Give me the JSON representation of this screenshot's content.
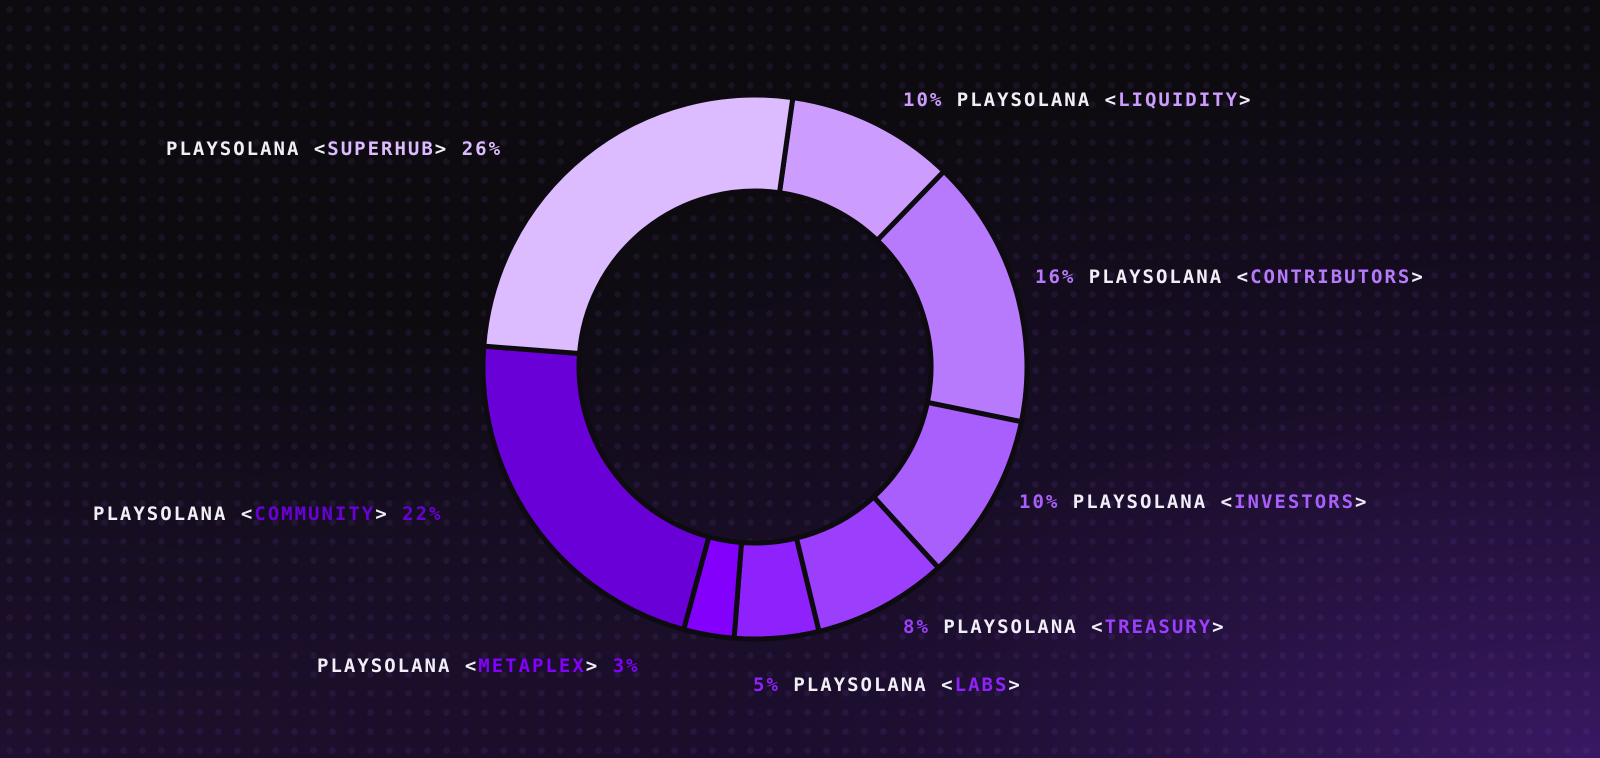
{
  "chart_data": {
    "type": "pie",
    "donut": true,
    "slices": [
      {
        "prefix": "PLAYSOLANA",
        "label": "LIQUIDITY",
        "value": 10,
        "pct_text": "10%",
        "color": "#cc9dfd"
      },
      {
        "prefix": "PLAYSOLANA",
        "label": "CONTRIBUTORS",
        "value": 16,
        "pct_text": "16%",
        "color": "#b87afc"
      },
      {
        "prefix": "PLAYSOLANA",
        "label": "INVESTORS",
        "value": 10,
        "pct_text": "10%",
        "color": "#a95ffc"
      },
      {
        "prefix": "PLAYSOLANA",
        "label": "TREASURY",
        "value": 8,
        "pct_text": "8%",
        "color": "#9b3ffd"
      },
      {
        "prefix": "PLAYSOLANA",
        "label": "LABS",
        "value": 5,
        "pct_text": "5%",
        "color": "#8f22fc"
      },
      {
        "prefix": "PLAYSOLANA",
        "label": "METAPLEX",
        "value": 3,
        "pct_text": "3%",
        "color": "#8200fc"
      },
      {
        "prefix": "PLAYSOLANA",
        "label": "COMMUNITY",
        "value": 22,
        "pct_text": "22%",
        "color": "#6a00d8"
      },
      {
        "prefix": "PLAYSOLANA",
        "label": "SUPERHUB",
        "value": 26,
        "pct_text": "26%",
        "color": "#dcbcff"
      }
    ]
  }
}
